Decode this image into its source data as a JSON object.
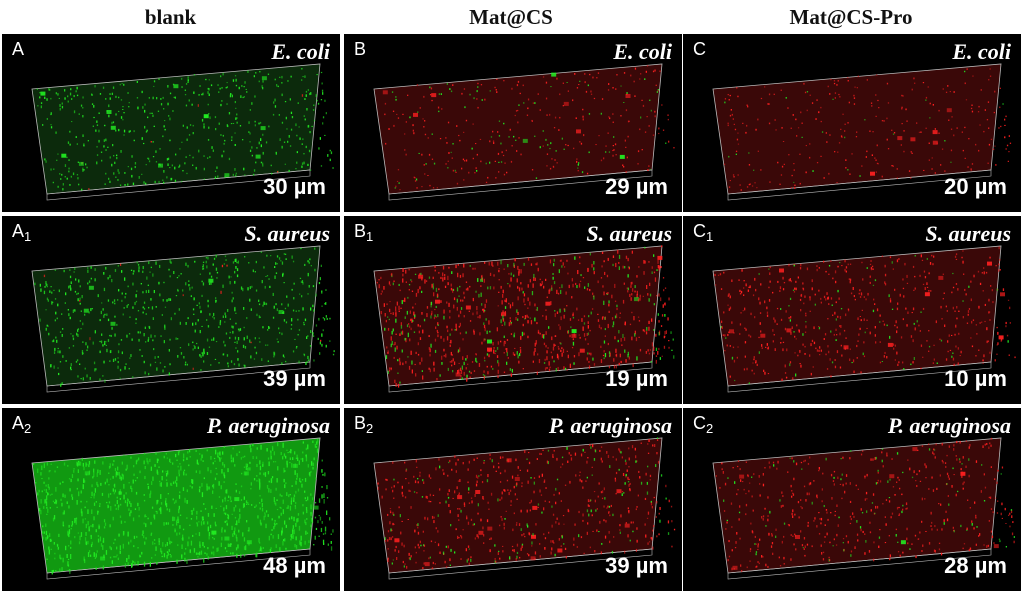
{
  "columns": [
    "blank",
    "Mat@CS",
    "Mat@CS-Pro"
  ],
  "panels": [
    {
      "letter": "A",
      "sub": "",
      "species": "E. coli",
      "thickness": "30 µm",
      "green": 0.85,
      "red": 0.02,
      "density": 0.45
    },
    {
      "letter": "B",
      "sub": "",
      "species": "E. coli",
      "thickness": "29 µm",
      "green": 0.12,
      "red": 0.35,
      "density": 0.25
    },
    {
      "letter": "C",
      "sub": "",
      "species": "E. coli",
      "thickness": "20 µm",
      "green": 0.04,
      "red": 0.45,
      "density": 0.2
    },
    {
      "letter": "A",
      "sub": "1",
      "species": "S. aureus",
      "thickness": "39 µm",
      "green": 0.9,
      "red": 0.02,
      "density": 0.6
    },
    {
      "letter": "B",
      "sub": "1",
      "species": "S. aureus",
      "thickness": "19 µm",
      "green": 0.25,
      "red": 0.75,
      "density": 0.85
    },
    {
      "letter": "C",
      "sub": "1",
      "species": "S. aureus",
      "thickness": "10 µm",
      "green": 0.1,
      "red": 0.7,
      "density": 0.5
    },
    {
      "letter": "A",
      "sub": "2",
      "species": "P. aeruginosa",
      "thickness": "48 µm",
      "green": 1.0,
      "red": 0.0,
      "density": 1.0
    },
    {
      "letter": "B",
      "sub": "2",
      "species": "P. aeruginosa",
      "thickness": "39 µm",
      "green": 0.15,
      "red": 0.6,
      "density": 0.55
    },
    {
      "letter": "C",
      "sub": "2",
      "species": "P. aeruginosa",
      "thickness": "28 µm",
      "green": 0.1,
      "red": 0.55,
      "density": 0.45
    }
  ],
  "colors": {
    "green": "#22ee22",
    "red": "#ff2020",
    "background": "#000000",
    "frame": "#bbbbbb"
  }
}
